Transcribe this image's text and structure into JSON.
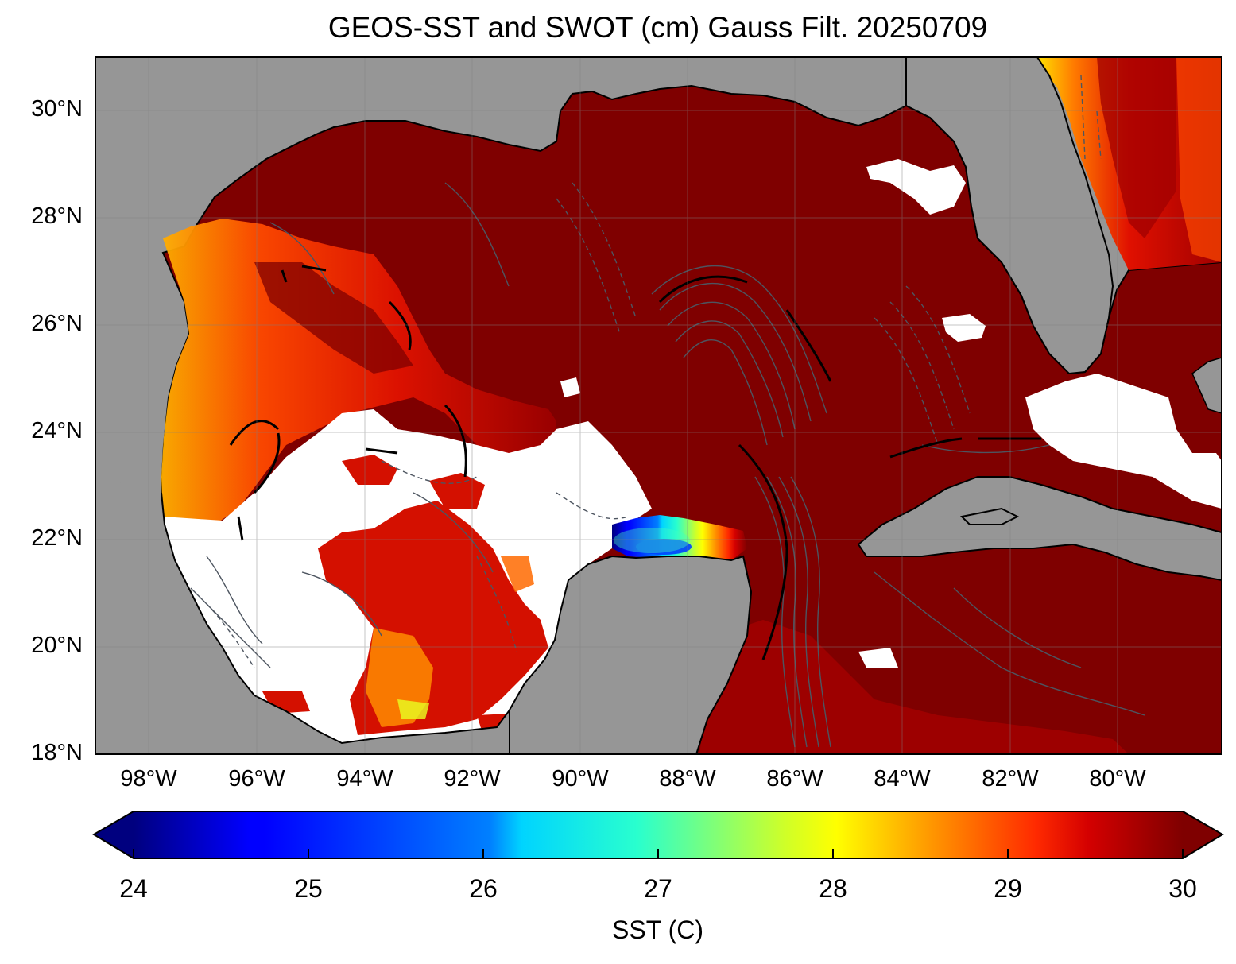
{
  "figure": {
    "title": "GEOS-SST  and SWOT (cm) Gauss Filt. 20250709"
  },
  "map": {
    "region": "Gulf of Mexico",
    "lon_range": [
      -99,
      -78.2
    ],
    "lat_range": [
      18,
      31
    ],
    "y_ticks": [
      "30°N",
      "28°N",
      "26°N",
      "24°N",
      "22°N",
      "20°N",
      "18°N"
    ],
    "x_ticks": [
      "98°W",
      "96°W",
      "94°W",
      "92°W",
      "90°W",
      "88°W",
      "86°W",
      "84°W",
      "82°W",
      "80°W"
    ],
    "gridlines": true,
    "colors": {
      "land": "#969696",
      "missing_data": "#ffffff",
      "warm_water": "#7f0000",
      "contour": "#4d5560",
      "zero_contour": "#000000"
    }
  },
  "colorbar": {
    "label": "SST (C)",
    "ticks": [
      "24",
      "25",
      "26",
      "27",
      "28",
      "29",
      "30"
    ],
    "min": 24,
    "max": 30,
    "colormap": "jet",
    "extend": "both"
  }
}
